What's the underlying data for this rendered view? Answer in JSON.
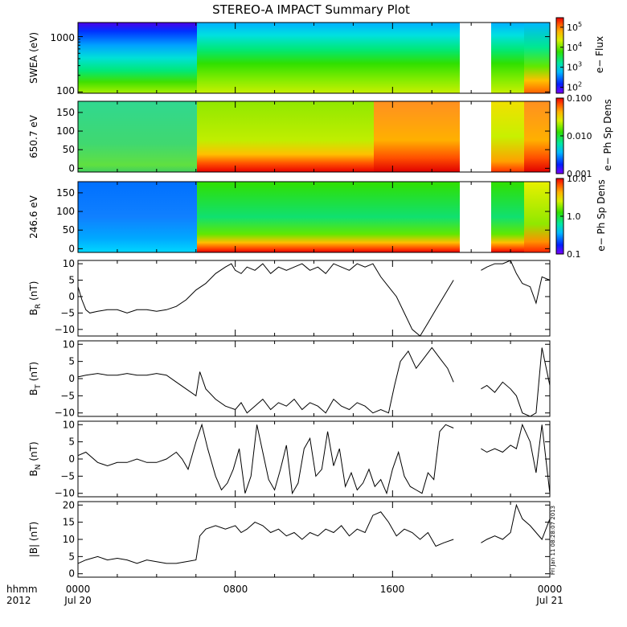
{
  "title": "STEREO-A IMPACT Summary Plot",
  "x_axis": {
    "hhmm_label": "hhmm",
    "year_label": "2012",
    "ticks": [
      {
        "t": 0,
        "time": "0000",
        "date": "Jul 20"
      },
      {
        "t": 8,
        "time": "0800",
        "date": ""
      },
      {
        "t": 16,
        "time": "1600",
        "date": ""
      },
      {
        "t": 24,
        "time": "0000",
        "date": "Jul 21"
      }
    ],
    "range_hours": [
      0,
      24
    ]
  },
  "timestamp": "Fri Jan 11 08:28:07 2013",
  "chart_data": [
    {
      "type": "heatmap",
      "panel_id": "swea",
      "ylabel": "SWEA (eV)",
      "yscale": "log",
      "ylim": [
        95,
        1800
      ],
      "yticks": [
        "100",
        "1000"
      ],
      "ytick_values": [
        100,
        1000
      ],
      "colorbar": {
        "label": "e− Flux",
        "scale": "log",
        "range": [
          50,
          300000
        ],
        "ticks": [
          "10^2",
          "10^3",
          "10^4",
          "10^5"
        ],
        "tick_values": [
          100,
          1000,
          10000,
          100000
        ]
      },
      "gaps_hours": [
        [
          19.1,
          20.5
        ]
      ]
    },
    {
      "type": "heatmap",
      "panel_id": "pad650",
      "ylabel": "650.7 eV",
      "ylim": [
        -10,
        180
      ],
      "yticks": [
        "0",
        "50",
        "100",
        "150"
      ],
      "ytick_values": [
        0,
        50,
        100,
        150
      ],
      "colorbar": {
        "label": "e− Ph Sp Dens",
        "scale": "log",
        "range": [
          0.001,
          0.1
        ],
        "ticks": [
          "0.001",
          "0.010",
          "0.100"
        ],
        "tick_values": [
          0.001,
          0.01,
          0.1
        ]
      },
      "gaps_hours": [
        [
          19.1,
          20.5
        ]
      ]
    },
    {
      "type": "heatmap",
      "panel_id": "pad246",
      "ylabel": "246.6 eV",
      "ylim": [
        -10,
        180
      ],
      "yticks": [
        "0",
        "50",
        "100",
        "150"
      ],
      "ytick_values": [
        0,
        50,
        100,
        150
      ],
      "colorbar": {
        "label": "e− Ph Sp Dens",
        "scale": "log",
        "range": [
          0.1,
          10
        ],
        "ticks": [
          "0.1",
          "1.0",
          "10.0"
        ],
        "tick_values": [
          0.1,
          1,
          10
        ]
      },
      "gaps_hours": [
        [
          19.1,
          20.5
        ]
      ]
    },
    {
      "type": "line",
      "panel_id": "br",
      "ylabel": "B",
      "ylabel_sub": "R",
      "ylabel_unit": "(nT)",
      "ylim": [
        -12,
        11
      ],
      "yticks": [
        "−10",
        "−5",
        "0",
        "5",
        "10"
      ],
      "ytick_values": [
        -10,
        -5,
        0,
        5,
        10
      ],
      "x": [
        0,
        0.2,
        0.4,
        0.6,
        1,
        1.5,
        2,
        2.5,
        3,
        3.5,
        4,
        4.5,
        5,
        5.5,
        6,
        6.5,
        7,
        7.5,
        7.8,
        8,
        8.3,
        8.6,
        9,
        9.4,
        9.8,
        10.2,
        10.6,
        11,
        11.4,
        11.8,
        12.2,
        12.6,
        13,
        13.4,
        13.8,
        14.2,
        14.6,
        15,
        15.4,
        15.8,
        16.2,
        16.6,
        17,
        17.4,
        17.8,
        18.2,
        18.6,
        19.1,
        null,
        20.5,
        20.8,
        21.2,
        21.6,
        22,
        22.3,
        22.6,
        23,
        23.3,
        23.6,
        24
      ],
      "y": [
        3,
        -1,
        -4,
        -5,
        -4.5,
        -4,
        -4,
        -5,
        -4,
        -4,
        -4.5,
        -4,
        -3,
        -1,
        2,
        4,
        7,
        9,
        10,
        8,
        7,
        9,
        8,
        10,
        7,
        9,
        8,
        9,
        10,
        8,
        9,
        7,
        10,
        9,
        8,
        10,
        9,
        10,
        6,
        3,
        0,
        -5,
        -10,
        -12,
        -8,
        -4,
        0,
        5,
        null,
        8,
        9,
        10,
        10,
        11,
        7,
        4,
        3,
        -2,
        6,
        5
      ]
    },
    {
      "type": "line",
      "panel_id": "bt",
      "ylabel": "B",
      "ylabel_sub": "T",
      "ylabel_unit": "(nT)",
      "ylim": [
        -11,
        11
      ],
      "yticks": [
        "−10",
        "−5",
        "0",
        "5",
        "10"
      ],
      "ytick_values": [
        -10,
        -5,
        0,
        5,
        10
      ],
      "x": [
        0,
        0.4,
        1,
        1.5,
        2,
        2.5,
        3,
        3.5,
        4,
        4.5,
        5,
        5.5,
        6,
        6.2,
        6.5,
        7,
        7.5,
        8,
        8.3,
        8.6,
        9,
        9.4,
        9.8,
        10.2,
        10.6,
        11,
        11.4,
        11.8,
        12.2,
        12.6,
        13,
        13.4,
        13.8,
        14.2,
        14.6,
        15,
        15.4,
        15.8,
        16.1,
        16.4,
        16.8,
        17.2,
        17.6,
        18,
        18.4,
        18.8,
        19.1,
        null,
        20.5,
        20.8,
        21.2,
        21.6,
        22,
        22.3,
        22.6,
        23,
        23.3,
        23.6,
        24
      ],
      "y": [
        0.5,
        1,
        1.5,
        1,
        1,
        1.5,
        1,
        1,
        1.5,
        1,
        -1,
        -3,
        -5,
        2,
        -3,
        -6,
        -8,
        -9,
        -7,
        -10,
        -8,
        -6,
        -9,
        -7,
        -8,
        -6,
        -9,
        -7,
        -8,
        -10,
        -6,
        -8,
        -9,
        -7,
        -8,
        -10,
        -9,
        -10,
        -2,
        5,
        8,
        3,
        6,
        9,
        6,
        3,
        -1,
        null,
        -3,
        -2,
        -4,
        -1,
        -3,
        -5,
        -10,
        -11,
        -10,
        9,
        -2
      ]
    },
    {
      "type": "line",
      "panel_id": "bn",
      "ylabel": "B",
      "ylabel_sub": "N",
      "ylabel_unit": "(nT)",
      "ylim": [
        -11,
        11
      ],
      "yticks": [
        "−10",
        "−5",
        "0",
        "5",
        "10"
      ],
      "ytick_values": [
        -10,
        -5,
        0,
        5,
        10
      ],
      "x": [
        0,
        0.4,
        1,
        1.5,
        2,
        2.5,
        3,
        3.5,
        4,
        4.5,
        5,
        5.3,
        5.6,
        6,
        6.3,
        6.6,
        7,
        7.3,
        7.6,
        7.9,
        8.2,
        8.5,
        8.8,
        9.1,
        9.4,
        9.7,
        10,
        10.3,
        10.6,
        10.9,
        11.2,
        11.5,
        11.8,
        12.1,
        12.4,
        12.7,
        13,
        13.3,
        13.6,
        13.9,
        14.2,
        14.5,
        14.8,
        15.1,
        15.4,
        15.7,
        16,
        16.3,
        16.6,
        16.9,
        17.2,
        17.5,
        17.8,
        18.1,
        18.4,
        18.7,
        19.1,
        null,
        20.5,
        20.8,
        21.2,
        21.6,
        22,
        22.3,
        22.6,
        23,
        23.3,
        23.6,
        24
      ],
      "y": [
        1,
        2,
        -1,
        -2,
        -1,
        -1,
        0,
        -1,
        -1,
        0,
        2,
        0,
        -3,
        5,
        10,
        3,
        -5,
        -9,
        -7,
        -3,
        3,
        -10,
        -5,
        10,
        2,
        -6,
        -9,
        -3,
        4,
        -10,
        -7,
        3,
        6,
        -5,
        -3,
        8,
        -2,
        3,
        -8,
        -4,
        -9,
        -7,
        -3,
        -8,
        -6,
        -10,
        -3,
        2,
        -5,
        -8,
        -9,
        -10,
        -4,
        -6,
        8,
        10,
        9,
        null,
        3,
        2,
        3,
        2,
        4,
        3,
        10,
        5,
        -4,
        10,
        -10
      ]
    },
    {
      "type": "line",
      "panel_id": "bmag",
      "ylabel": "|B| (nT)",
      "ylim": [
        -1,
        21
      ],
      "yticks": [
        "0",
        "5",
        "10",
        "15",
        "20"
      ],
      "ytick_values": [
        0,
        5,
        10,
        15,
        20
      ],
      "x": [
        0,
        0.4,
        1,
        1.5,
        2,
        2.5,
        3,
        3.5,
        4,
        4.5,
        5,
        5.5,
        6,
        6.2,
        6.5,
        7,
        7.5,
        8,
        8.3,
        8.6,
        9,
        9.4,
        9.8,
        10.2,
        10.6,
        11,
        11.4,
        11.8,
        12.2,
        12.6,
        13,
        13.4,
        13.8,
        14.2,
        14.6,
        15,
        15.4,
        15.8,
        16.2,
        16.6,
        17,
        17.4,
        17.8,
        18.2,
        18.6,
        19.1,
        null,
        20.5,
        20.8,
        21.2,
        21.6,
        22,
        22.3,
        22.6,
        23,
        23.3,
        23.6,
        24
      ],
      "y": [
        3,
        4,
        5,
        4,
        4.5,
        4,
        3,
        4,
        3.5,
        3,
        3,
        3.5,
        4,
        11,
        13,
        14,
        13,
        14,
        12,
        13,
        15,
        14,
        12,
        13,
        11,
        12,
        10,
        12,
        11,
        13,
        12,
        14,
        11,
        13,
        12,
        17,
        18,
        15,
        11,
        13,
        12,
        10,
        12,
        8,
        9,
        10,
        null,
        9,
        10,
        11,
        10,
        12,
        20,
        16,
        14,
        12,
        10,
        16
      ]
    }
  ]
}
